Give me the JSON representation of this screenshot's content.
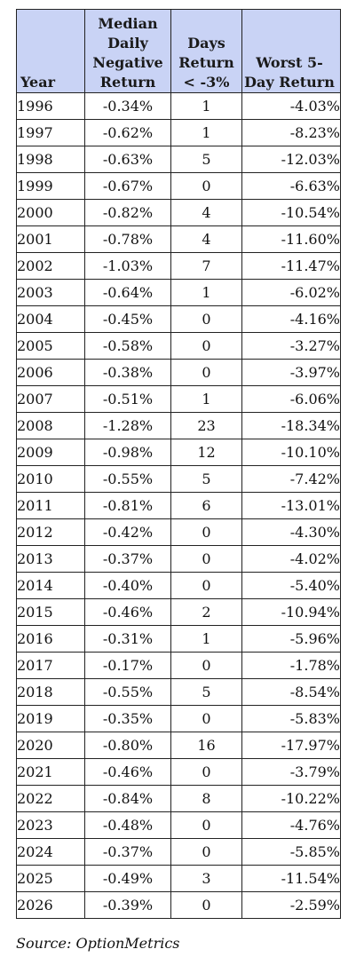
{
  "table": {
    "headers": {
      "year": "Year",
      "median": "Median Daily Negative Return",
      "days": "Days Return < -3%",
      "worst": "Worst 5-Day Return"
    },
    "rows": [
      {
        "year": "1996",
        "median": "-0.34%",
        "days": "1",
        "worst": "-4.03%"
      },
      {
        "year": "1997",
        "median": "-0.62%",
        "days": "1",
        "worst": "-8.23%"
      },
      {
        "year": "1998",
        "median": "-0.63%",
        "days": "5",
        "worst": "-12.03%"
      },
      {
        "year": "1999",
        "median": "-0.67%",
        "days": "0",
        "worst": "-6.63%"
      },
      {
        "year": "2000",
        "median": "-0.82%",
        "days": "4",
        "worst": "-10.54%"
      },
      {
        "year": "2001",
        "median": "-0.78%",
        "days": "4",
        "worst": "-11.60%"
      },
      {
        "year": "2002",
        "median": "-1.03%",
        "days": "7",
        "worst": "-11.47%"
      },
      {
        "year": "2003",
        "median": "-0.64%",
        "days": "1",
        "worst": "-6.02%"
      },
      {
        "year": "2004",
        "median": "-0.45%",
        "days": "0",
        "worst": "-4.16%"
      },
      {
        "year": "2005",
        "median": "-0.58%",
        "days": "0",
        "worst": "-3.27%"
      },
      {
        "year": "2006",
        "median": "-0.38%",
        "days": "0",
        "worst": "-3.97%"
      },
      {
        "year": "2007",
        "median": "-0.51%",
        "days": "1",
        "worst": "-6.06%"
      },
      {
        "year": "2008",
        "median": "-1.28%",
        "days": "23",
        "worst": "-18.34%"
      },
      {
        "year": "2009",
        "median": "-0.98%",
        "days": "12",
        "worst": "-10.10%"
      },
      {
        "year": "2010",
        "median": "-0.55%",
        "days": "5",
        "worst": "-7.42%"
      },
      {
        "year": "2011",
        "median": "-0.81%",
        "days": "6",
        "worst": "-13.01%"
      },
      {
        "year": "2012",
        "median": "-0.42%",
        "days": "0",
        "worst": "-4.30%"
      },
      {
        "year": "2013",
        "median": "-0.37%",
        "days": "0",
        "worst": "-4.02%"
      },
      {
        "year": "2014",
        "median": "-0.40%",
        "days": "0",
        "worst": "-5.40%"
      },
      {
        "year": "2015",
        "median": "-0.46%",
        "days": "2",
        "worst": "-10.94%"
      },
      {
        "year": "2016",
        "median": "-0.31%",
        "days": "1",
        "worst": "-5.96%"
      },
      {
        "year": "2017",
        "median": "-0.17%",
        "days": "0",
        "worst": "-1.78%"
      },
      {
        "year": "2018",
        "median": "-0.55%",
        "days": "5",
        "worst": "-8.54%"
      },
      {
        "year": "2019",
        "median": "-0.35%",
        "days": "0",
        "worst": "-5.83%"
      },
      {
        "year": "2020",
        "median": "-0.80%",
        "days": "16",
        "worst": "-17.97%"
      },
      {
        "year": "2021",
        "median": "-0.46%",
        "days": "0",
        "worst": "-3.79%"
      },
      {
        "year": "2022",
        "median": "-0.84%",
        "days": "8",
        "worst": "-10.22%"
      },
      {
        "year": "2023",
        "median": "-0.48%",
        "days": "0",
        "worst": "-4.76%"
      },
      {
        "year": "2024",
        "median": "-0.37%",
        "days": "0",
        "worst": "-5.85%"
      },
      {
        "year": "2025",
        "median": "-0.49%",
        "days": "3",
        "worst": "-11.54%"
      },
      {
        "year": "2026",
        "median": "-0.39%",
        "days": "0",
        "worst": "-2.59%"
      }
    ]
  },
  "source": "Source: OptionMetrics",
  "colors": {
    "header_background": "#c9d3f5",
    "border": "#222222"
  }
}
